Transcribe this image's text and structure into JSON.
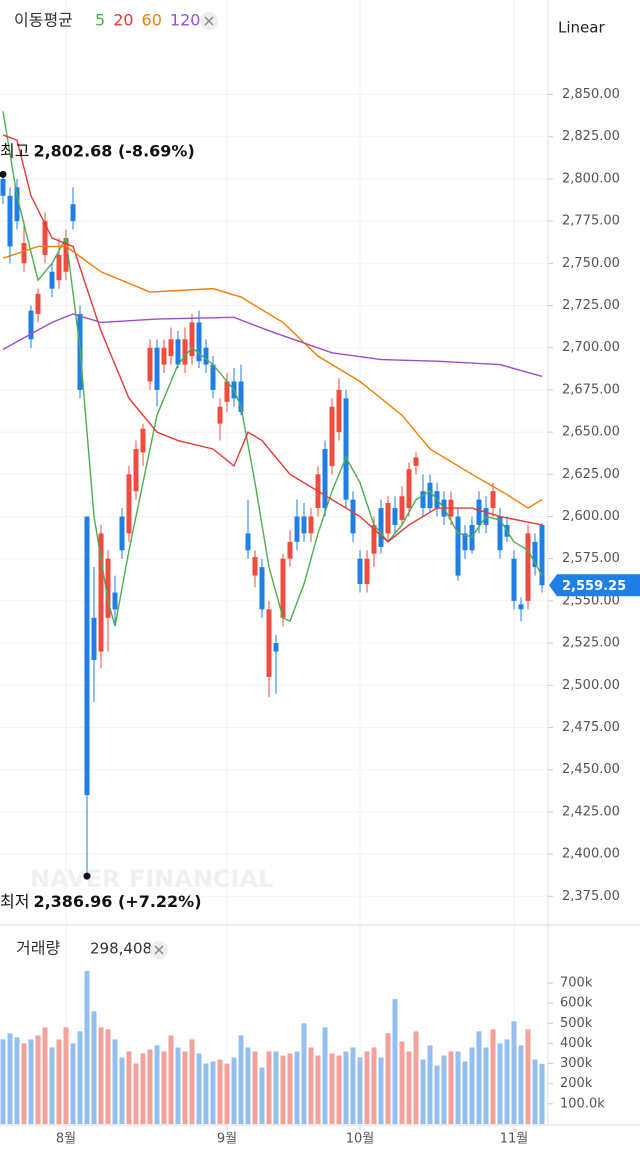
{
  "chart_data": [
    {
      "type": "candlestick",
      "title": "이동평균",
      "scale_label": "Linear",
      "watermark": "NAVER FINANCIAL",
      "up_color": "#ef4b3f",
      "down_color": "#1f7fe5",
      "open": [
        2800,
        2790,
        2795,
        2750,
        2722,
        2720,
        2755,
        2745,
        2740,
        2745,
        2785,
        2720,
        2600,
        2540,
        2520,
        2540,
        2555,
        2600,
        2590,
        2615,
        2638,
        2680,
        2700,
        2690,
        2695,
        2705,
        2690,
        2695,
        2715,
        2700,
        2690,
        2655,
        2668,
        2680,
        2680,
        2590,
        2565,
        2570,
        2505,
        2525,
        2540,
        2575,
        2600,
        2600,
        2590,
        2605,
        2640,
        2630,
        2650,
        2670,
        2610,
        2575,
        2560,
        2578,
        2605,
        2590,
        2605,
        2598,
        2605,
        2630,
        2615,
        2620,
        2615,
        2610,
        2600,
        2600,
        2590,
        2595,
        2610,
        2605,
        2605,
        2600,
        2595,
        2575,
        2548,
        2550,
        2585,
        2595
      ],
      "high": [
        2802.68,
        2795,
        2800,
        2775,
        2725,
        2735,
        2780,
        2750,
        2765,
        2770,
        2795,
        2725,
        2600,
        2570,
        2595,
        2580,
        2565,
        2605,
        2630,
        2645,
        2655,
        2705,
        2705,
        2705,
        2712,
        2710,
        2712,
        2720,
        2722,
        2705,
        2695,
        2670,
        2685,
        2688,
        2690,
        2610,
        2580,
        2575,
        2550,
        2530,
        2578,
        2592,
        2610,
        2608,
        2605,
        2630,
        2645,
        2670,
        2682,
        2675,
        2615,
        2580,
        2580,
        2600,
        2610,
        2612,
        2612,
        2618,
        2632,
        2638,
        2625,
        2625,
        2620,
        2615,
        2615,
        2605,
        2595,
        2600,
        2615,
        2612,
        2620,
        2605,
        2600,
        2580,
        2552,
        2595,
        2590,
        2596
      ],
      "low": [
        2785,
        2750,
        2770,
        2745,
        2700,
        2715,
        2750,
        2730,
        2735,
        2740,
        2770,
        2670,
        2386.96,
        2490,
        2510,
        2520,
        2535,
        2575,
        2585,
        2610,
        2630,
        2675,
        2665,
        2685,
        2690,
        2688,
        2685,
        2690,
        2688,
        2685,
        2670,
        2645,
        2662,
        2665,
        2660,
        2575,
        2558,
        2540,
        2493,
        2495,
        2535,
        2570,
        2580,
        2585,
        2585,
        2600,
        2600,
        2625,
        2645,
        2605,
        2585,
        2555,
        2555,
        2570,
        2578,
        2585,
        2590,
        2595,
        2600,
        2625,
        2600,
        2602,
        2600,
        2595,
        2595,
        2562,
        2575,
        2578,
        2590,
        2590,
        2600,
        2575,
        2585,
        2545,
        2538,
        2545,
        2565,
        2555
      ],
      "close": [
        2790,
        2760,
        2775,
        2762,
        2705,
        2732,
        2775,
        2735,
        2755,
        2765,
        2775,
        2675,
        2435,
        2515,
        2590,
        2575,
        2545,
        2580,
        2625,
        2640,
        2652,
        2700,
        2675,
        2700,
        2705,
        2690,
        2705,
        2715,
        2692,
        2690,
        2675,
        2665,
        2680,
        2670,
        2662,
        2580,
        2576,
        2545,
        2545,
        2520,
        2575,
        2585,
        2585,
        2590,
        2600,
        2625,
        2605,
        2665,
        2675,
        2610,
        2590,
        2560,
        2575,
        2595,
        2582,
        2608,
        2595,
        2612,
        2628,
        2635,
        2605,
        2605,
        2605,
        2600,
        2610,
        2565,
        2580,
        2580,
        2595,
        2595,
        2615,
        2580,
        2588,
        2550,
        2545,
        2590,
        2570,
        2559.25
      ],
      "last_label": "2,559.25",
      "high_annotation": {
        "label": "최고",
        "text": "2,802.68 (-8.69%)"
      },
      "low_annotation": {
        "label": "최저",
        "text": "2,386.96 (+7.22%)"
      },
      "series": [
        {
          "name": "5",
          "color": "#4caf50",
          "x": [
            0,
            2,
            5,
            7,
            9,
            11,
            13,
            15,
            16,
            18,
            20,
            22,
            25,
            27,
            30,
            33,
            34,
            36,
            38,
            40,
            41,
            43,
            45,
            47,
            49,
            51,
            53,
            55,
            57,
            59,
            61,
            63,
            65,
            67,
            69,
            71,
            73,
            75,
            77
          ],
          "values": [
            2840,
            2790,
            2740,
            2750,
            2765,
            2700,
            2600,
            2550,
            2535,
            2580,
            2620,
            2660,
            2690,
            2700,
            2690,
            2675,
            2665,
            2620,
            2570,
            2540,
            2538,
            2560,
            2590,
            2615,
            2635,
            2620,
            2595,
            2585,
            2595,
            2610,
            2615,
            2605,
            2590,
            2588,
            2600,
            2598,
            2585,
            2580,
            2565
          ]
        },
        {
          "name": "20",
          "color": "#e53935",
          "x": [
            0,
            2,
            4,
            7,
            10,
            14,
            18,
            22,
            25,
            30,
            33,
            35,
            37,
            41,
            45,
            51,
            55,
            58,
            62,
            67,
            71,
            77
          ],
          "values": [
            2826,
            2823,
            2790,
            2765,
            2760,
            2710,
            2670,
            2650,
            2645,
            2640,
            2630,
            2650,
            2645,
            2625,
            2615,
            2600,
            2585,
            2595,
            2605,
            2605,
            2600,
            2595
          ]
        },
        {
          "name": "60",
          "color": "#f57c00",
          "x": [
            0,
            5,
            9,
            14,
            21,
            30,
            34,
            40,
            45,
            51,
            57,
            61,
            67,
            72,
            75,
            77
          ],
          "values": [
            2753,
            2760,
            2760,
            2745,
            2733,
            2735,
            2730,
            2715,
            2695,
            2680,
            2660,
            2640,
            2625,
            2613,
            2605,
            2610
          ]
        },
        {
          "name": "120",
          "color": "#9c4dcc",
          "x": [
            0,
            7,
            10,
            14,
            22,
            33,
            38,
            47,
            54,
            62,
            71,
            77
          ],
          "values": [
            2699,
            2715,
            2720,
            2715,
            2717,
            2718,
            2710,
            2697,
            2693,
            2692,
            2690,
            2683
          ]
        }
      ],
      "ylim": [
        2358,
        2906
      ],
      "yticks": [
        {
          "value": 2375,
          "label": "2,375.00"
        },
        {
          "value": 2400,
          "label": "2,400.00"
        },
        {
          "value": 2425,
          "label": "2,425.00"
        },
        {
          "value": 2450,
          "label": "2,450.00"
        },
        {
          "value": 2475,
          "label": "2,475.00"
        },
        {
          "value": 2500,
          "label": "2,500.00"
        },
        {
          "value": 2525,
          "label": "2,525.00"
        },
        {
          "value": 2550,
          "label": "2,550.00"
        },
        {
          "value": 2575,
          "label": "2,575.00"
        },
        {
          "value": 2600,
          "label": "2,600.00"
        },
        {
          "value": 2625,
          "label": "2,625.00"
        },
        {
          "value": 2650,
          "label": "2,650.00"
        },
        {
          "value": 2675,
          "label": "2,675.00"
        },
        {
          "value": 2700,
          "label": "2,700.00"
        },
        {
          "value": 2725,
          "label": "2,725.00"
        },
        {
          "value": 2750,
          "label": "2,750.00"
        },
        {
          "value": 2775,
          "label": "2,775.00"
        },
        {
          "value": 2800,
          "label": "2,800.00"
        },
        {
          "value": 2825,
          "label": "2,825.00"
        },
        {
          "value": 2850,
          "label": "2,850.00"
        }
      ],
      "grid": true
    },
    {
      "type": "bar",
      "title": "거래량",
      "last_value_label": "298,408",
      "up_color": "#f2a19b",
      "down_color": "#93c0f0",
      "categories": [
        null,
        null,
        null,
        null,
        null,
        null,
        null,
        null,
        null,
        "8월",
        null,
        null,
        null,
        null,
        null,
        null,
        null,
        null,
        null,
        null,
        null,
        null,
        null,
        null,
        null,
        null,
        null,
        null,
        null,
        null,
        null,
        null,
        "9월",
        null,
        null,
        null,
        null,
        null,
        null,
        null,
        null,
        null,
        null,
        null,
        null,
        null,
        null,
        null,
        null,
        null,
        null,
        "10월",
        null,
        null,
        null,
        null,
        null,
        null,
        null,
        null,
        null,
        null,
        null,
        null,
        null,
        null,
        null,
        null,
        null,
        null,
        null,
        null,
        null,
        "11월",
        null,
        null,
        null,
        null
      ],
      "values": [
        420000,
        450000,
        430000,
        400000,
        420000,
        440000,
        480000,
        380000,
        420000,
        480000,
        400000,
        460000,
        760000,
        560000,
        480000,
        470000,
        420000,
        330000,
        360000,
        300000,
        350000,
        370000,
        390000,
        360000,
        440000,
        380000,
        360000,
        420000,
        350000,
        300000,
        310000,
        320000,
        300000,
        330000,
        440000,
        380000,
        360000,
        280000,
        360000,
        360000,
        340000,
        350000,
        360000,
        500000,
        380000,
        340000,
        480000,
        350000,
        340000,
        360000,
        380000,
        330000,
        360000,
        380000,
        330000,
        450000,
        620000,
        410000,
        360000,
        460000,
        320000,
        390000,
        290000,
        340000,
        360000,
        360000,
        310000,
        380000,
        460000,
        380000,
        470000,
        400000,
        420000,
        510000,
        390000,
        470000,
        320000,
        298408
      ],
      "ylim": [
        0,
        938000
      ],
      "yticks": [
        {
          "value": 100000,
          "label": "100.0k"
        },
        {
          "value": 200000,
          "label": "200k"
        },
        {
          "value": 300000,
          "label": "300k"
        },
        {
          "value": 400000,
          "label": "400k"
        },
        {
          "value": 500000,
          "label": "500k"
        },
        {
          "value": 600000,
          "label": "600k"
        },
        {
          "value": 700000,
          "label": "700k"
        }
      ]
    }
  ]
}
